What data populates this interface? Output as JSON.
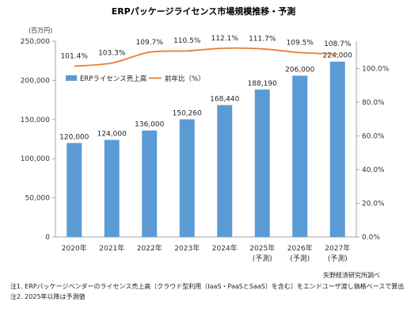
{
  "chart_data": {
    "type": "bar",
    "title": "ERPパッケージライセンス市場規模推移・予測",
    "unit_label": "(百万円)",
    "categories": [
      [
        "2020年"
      ],
      [
        "2021年"
      ],
      [
        "2022年"
      ],
      [
        "2023年"
      ],
      [
        "2024年"
      ],
      [
        "2025年",
        "(予測)"
      ],
      [
        "2026年",
        "(予測)"
      ],
      [
        "2027年",
        "(予測)"
      ]
    ],
    "series": [
      {
        "name": "ERPライセンス売上高",
        "type": "bar",
        "axis": "left",
        "values": [
          120000,
          124000,
          136000,
          150260,
          168440,
          188190,
          206000,
          224000
        ],
        "labels": [
          "120,000",
          "124,000",
          "136,000",
          "150,260",
          "168,440",
          "188,190",
          "206,000",
          "224,000"
        ]
      },
      {
        "name": "前年比（%）",
        "type": "line",
        "axis": "right",
        "values": [
          101.4,
          103.3,
          109.7,
          110.5,
          112.1,
          111.7,
          109.5,
          108.7
        ],
        "labels": [
          "101.4%",
          "103.3%",
          "109.7%",
          "110.5%",
          "112.1%",
          "111.7%",
          "109.5%",
          "108.7%"
        ]
      }
    ],
    "y_left": {
      "range": [
        0,
        250000
      ],
      "ticks": [
        0,
        50000,
        100000,
        150000,
        200000,
        250000
      ],
      "tick_labels": [
        "0",
        "50,000",
        "100,000",
        "150,000",
        "200,000",
        "250,000"
      ]
    },
    "y_right": {
      "range": [
        0,
        116.25
      ],
      "ticks": [
        0,
        20,
        40,
        60,
        80,
        100
      ],
      "tick_labels": [
        "0.0%",
        "20.0%",
        "40.0%",
        "60.0%",
        "80.0%",
        "100.0%"
      ]
    },
    "legend_position": "inside-top-left",
    "grid": false,
    "source": "矢野経済研究所調べ",
    "notes": [
      "注1.  ERPパッケージベンダーのライセンス売上高〔クラウド型利用（IaaS・PaaSとSaaS）を含む〕をエンドユーザ渡し価格ベースで算出",
      "注2.  2025年以降は予測値"
    ],
    "colors": {
      "bar": "#5b9bd5",
      "line": "#ed7d31",
      "axis": "#a6a6a6",
      "text": "#333333"
    }
  }
}
